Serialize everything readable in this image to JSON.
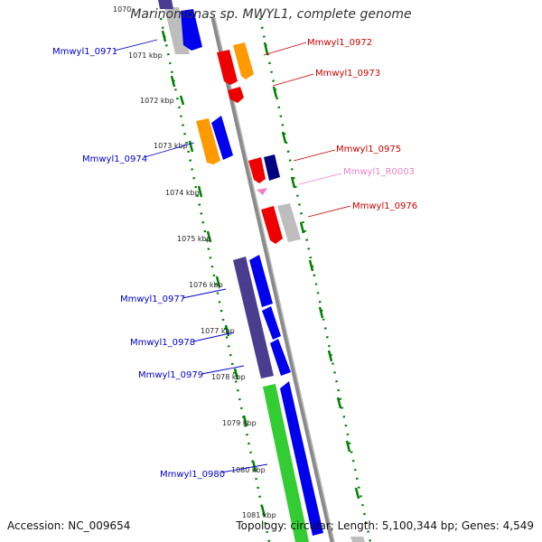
{
  "title": "Marinomonas sp. MWYL1, complete genome",
  "footer": {
    "accession": "Accession: NC_009654",
    "summary": "Topology: circular; Length: 5,100,344 bp; Genes: 4,549"
  },
  "ticks": [
    "1070",
    "1071 kbp",
    "1072 kbp",
    "1073 kbp",
    "1074 kbp",
    "1075 kbp",
    "1076 kbp",
    "1077 kbp",
    "1078 kbp",
    "1079 kbp",
    "1080 kbp",
    "1081 kbp"
  ],
  "gene_labels": {
    "left": [
      "Mmwyl1_0971",
      "Mmwyl1_0974",
      "Mmwyl1_0977",
      "Mmwyl1_0978",
      "Mmwyl1_0979",
      "Mmwyl1_0980"
    ],
    "right": [
      "Mmwyl1_0972",
      "Mmwyl1_0973",
      "Mmwyl1_0975",
      "Mmwyl1_R0003",
      "Mmwyl1_0976"
    ]
  },
  "colors": {
    "blue": "#0000ee",
    "red": "#ee0000",
    "orange": "#ff9900",
    "navy": "#000080",
    "purple": "#4a3d8f",
    "gray": "#bdbdbd",
    "green": "#33cc33",
    "pink": "#ee82c8",
    "backbone": "#8a8a8a",
    "ticks": "#008000",
    "left_label": "#0000cc",
    "right_label": "#cc0000",
    "rna_label": "#ee82c8"
  }
}
